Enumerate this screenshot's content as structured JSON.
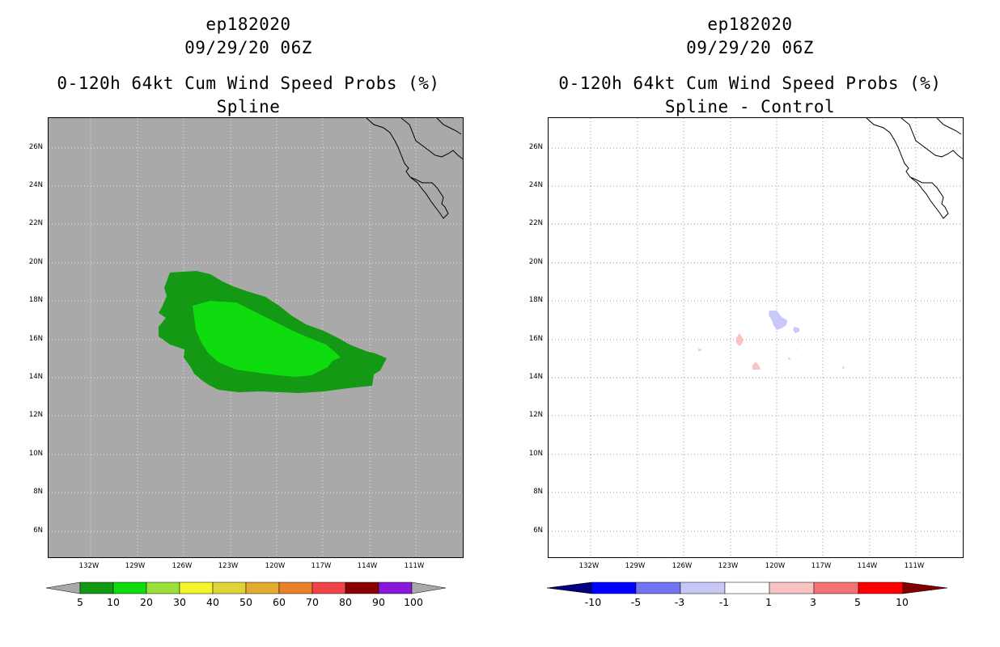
{
  "colors": {
    "land_mask": "#a9a9a9",
    "green_dark": "#139913",
    "green_light": "#0fdc0f",
    "diff_blue": "#c9c9f9",
    "diff_pink": "#f9c3c3"
  },
  "left": {
    "title_line1": "ep182020",
    "title_line2": "09/29/20 06Z",
    "title_line3": "0-120h 64kt Cum Wind Speed Probs (%)",
    "title_line4": "Spline",
    "lat_labels": [
      "26N",
      "24N",
      "22N",
      "20N",
      "18N",
      "16N",
      "14N",
      "12N",
      "10N",
      "8N",
      "6N"
    ],
    "lon_labels": [
      "132W",
      "129W",
      "126W",
      "123W",
      "120W",
      "117W",
      "114W",
      "111W"
    ],
    "colorbar": {
      "labels": [
        "5",
        "10",
        "20",
        "30",
        "40",
        "50",
        "60",
        "70",
        "80",
        "90",
        "100"
      ],
      "colors": [
        "#139913",
        "#0fdc0f",
        "#9be03a",
        "#f5f52c",
        "#dfd437",
        "#e1ab2f",
        "#e8822a",
        "#f0444a",
        "#8a0000",
        "#8a18d8"
      ]
    }
  },
  "right": {
    "title_line1": "ep182020",
    "title_line2": "09/29/20 06Z",
    "title_line3": "0-120h 64kt Cum Wind Speed Probs (%)",
    "title_line4": "Spline - Control",
    "lat_labels": [
      "26N",
      "24N",
      "22N",
      "20N",
      "18N",
      "16N",
      "14N",
      "12N",
      "10N",
      "8N",
      "6N"
    ],
    "lon_labels": [
      "132W",
      "129W",
      "126W",
      "123W",
      "120W",
      "117W",
      "114W",
      "111W"
    ],
    "colorbar": {
      "labels": [
        "-10",
        "-5",
        "-3",
        "-1",
        "1",
        "3",
        "5",
        "10"
      ],
      "colors": [
        "#0000ff",
        "#7373f2",
        "#c8c8f6",
        "#ffffff",
        "#f7c3c3",
        "#f27373",
        "#ff0000"
      ],
      "end_left": "#000080",
      "end_right": "#800000"
    }
  }
}
